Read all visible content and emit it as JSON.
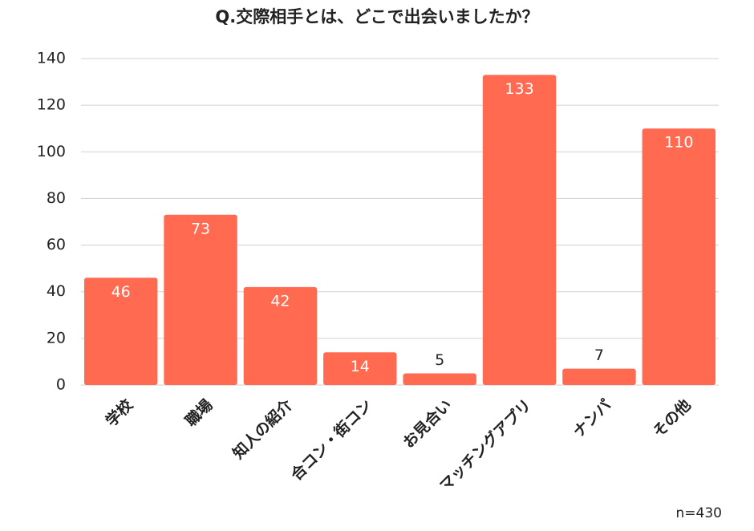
{
  "chart_data": {
    "type": "bar",
    "title": "Q.交際相手とは、どこで出会いましたか？",
    "categories": [
      "学校",
      "職場",
      "知人の紹介",
      "合コン・街コン",
      "お見合い",
      "マッチングアプリ",
      "ナンパ",
      "その他"
    ],
    "values": [
      46,
      73,
      42,
      14,
      5,
      133,
      7,
      110
    ],
    "color": "#ff6a50",
    "ylim": [
      0,
      140
    ],
    "yticks": [
      0,
      20,
      40,
      60,
      80,
      100,
      120,
      140
    ],
    "grid": true,
    "note": "n=430"
  }
}
